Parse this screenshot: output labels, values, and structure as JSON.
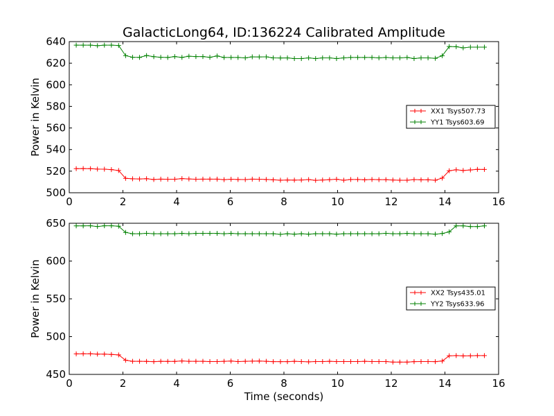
{
  "chart_data": [
    {
      "type": "line",
      "title": "GalacticLong64, ID:136224 Calibrated Amplitude",
      "xlabel": "",
      "ylabel": "Power in Kelvin",
      "xlim": [
        0,
        16
      ],
      "ylim": [
        500,
        640
      ],
      "xticks": [
        0,
        2,
        4,
        6,
        8,
        10,
        12,
        14,
        16
      ],
      "yticks": [
        500,
        520,
        540,
        560,
        580,
        600,
        620,
        640
      ],
      "grid": false,
      "legend_position": "right",
      "x": [
        0.26,
        0.52,
        0.79,
        1.05,
        1.31,
        1.57,
        1.84,
        2.1,
        2.36,
        2.62,
        2.88,
        3.15,
        3.41,
        3.67,
        3.93,
        4.2,
        4.46,
        4.72,
        4.98,
        5.24,
        5.51,
        5.77,
        6.03,
        6.29,
        6.56,
        6.82,
        7.08,
        7.34,
        7.6,
        7.87,
        8.13,
        8.39,
        8.65,
        8.92,
        9.18,
        9.44,
        9.7,
        9.96,
        10.23,
        10.49,
        10.75,
        11.01,
        11.28,
        11.54,
        11.8,
        12.06,
        12.32,
        12.59,
        12.85,
        13.11,
        13.37,
        13.64,
        13.9,
        14.16,
        14.42,
        14.68,
        14.95,
        15.21,
        15.47
      ],
      "series": [
        {
          "name": "XX1 Tsys507.73",
          "color": "#ff0000",
          "values": [
            522.3,
            522.4,
            522.3,
            521.9,
            521.8,
            521.4,
            520.6,
            513.3,
            512.9,
            512.8,
            513.0,
            512.3,
            512.6,
            512.5,
            512.5,
            513.1,
            512.8,
            512.5,
            512.6,
            512.6,
            512.6,
            512.1,
            512.5,
            512.3,
            512.2,
            512.6,
            512.5,
            512.3,
            512.0,
            511.6,
            511.8,
            511.7,
            511.8,
            512.2,
            511.5,
            511.8,
            512.1,
            512.5,
            511.6,
            512.3,
            512.3,
            512.0,
            512.3,
            512.1,
            512.1,
            511.8,
            511.6,
            511.6,
            512.2,
            512.0,
            512.0,
            511.6,
            513.6,
            520.4,
            521.3,
            520.6,
            521.1,
            521.7,
            521.6
          ]
        },
        {
          "name": "YY1 Tsys603.69",
          "color": "#008000",
          "values": [
            636.7,
            636.7,
            636.7,
            636.2,
            636.7,
            636.7,
            636.4,
            627.0,
            625.5,
            625.4,
            627.1,
            626.0,
            625.5,
            625.3,
            626.1,
            625.4,
            626.4,
            626.1,
            626.1,
            625.5,
            626.7,
            625.3,
            625.3,
            625.3,
            624.9,
            625.9,
            625.8,
            625.9,
            624.9,
            624.8,
            624.9,
            624.3,
            624.3,
            624.9,
            624.3,
            624.9,
            624.9,
            624.3,
            624.9,
            625.3,
            625.3,
            625.3,
            625.3,
            624.9,
            625.3,
            624.9,
            624.9,
            625.3,
            624.3,
            624.9,
            624.9,
            624.5,
            626.9,
            635.4,
            635.3,
            634.2,
            634.9,
            634.9,
            634.9
          ]
        }
      ]
    },
    {
      "type": "line",
      "title": "",
      "xlabel": "Time (seconds)",
      "ylabel": "Power in Kelvin",
      "xlim": [
        0,
        16
      ],
      "ylim": [
        450,
        650
      ],
      "xticks": [
        0,
        2,
        4,
        6,
        8,
        10,
        12,
        14,
        16
      ],
      "yticks": [
        450,
        500,
        550,
        600,
        650
      ],
      "grid": false,
      "legend_position": "right",
      "x": [
        0.26,
        0.52,
        0.79,
        1.05,
        1.31,
        1.57,
        1.84,
        2.1,
        2.36,
        2.62,
        2.88,
        3.15,
        3.41,
        3.67,
        3.93,
        4.2,
        4.46,
        4.72,
        4.98,
        5.24,
        5.51,
        5.77,
        6.03,
        6.29,
        6.56,
        6.82,
        7.08,
        7.34,
        7.6,
        7.87,
        8.13,
        8.39,
        8.65,
        8.92,
        9.18,
        9.44,
        9.7,
        9.96,
        10.23,
        10.49,
        10.75,
        11.01,
        11.28,
        11.54,
        11.8,
        12.06,
        12.32,
        12.59,
        12.85,
        13.11,
        13.37,
        13.64,
        13.9,
        14.16,
        14.42,
        14.68,
        14.95,
        15.21,
        15.47
      ],
      "series": [
        {
          "name": "XX2 Tsys435.01",
          "color": "#ff0000",
          "values": [
            477.2,
            477.3,
            477.3,
            476.8,
            476.8,
            476.4,
            475.8,
            468.8,
            467.3,
            467.3,
            467.2,
            466.9,
            467.3,
            467.2,
            467.2,
            467.8,
            467.3,
            467.3,
            467.3,
            467.0,
            467.0,
            467.3,
            467.7,
            467.0,
            467.3,
            467.6,
            467.7,
            467.3,
            466.9,
            466.9,
            466.9,
            467.3,
            467.0,
            466.6,
            467.0,
            467.0,
            467.3,
            467.0,
            467.0,
            467.0,
            467.0,
            467.3,
            467.0,
            467.0,
            467.0,
            466.3,
            466.3,
            466.3,
            466.9,
            467.0,
            467.0,
            466.9,
            467.7,
            474.6,
            474.9,
            474.5,
            474.7,
            474.9,
            474.9
          ]
        },
        {
          "name": "YY2 Tsys633.96",
          "color": "#008000",
          "values": [
            646.6,
            646.6,
            646.7,
            645.7,
            646.7,
            646.7,
            646.1,
            637.9,
            636.1,
            636.1,
            636.7,
            636.1,
            636.1,
            636.1,
            636.1,
            636.6,
            636.1,
            636.6,
            636.6,
            636.6,
            636.6,
            636.1,
            636.6,
            636.1,
            636.1,
            636.1,
            636.1,
            636.1,
            636.1,
            635.3,
            636.1,
            635.6,
            636.1,
            635.6,
            636.1,
            636.1,
            636.1,
            635.6,
            636.1,
            636.1,
            636.1,
            636.1,
            636.1,
            636.1,
            636.7,
            636.1,
            636.1,
            636.6,
            636.1,
            636.1,
            636.1,
            635.5,
            636.5,
            638.6,
            646.6,
            646.6,
            645.6,
            645.6,
            646.6
          ]
        }
      ]
    }
  ]
}
